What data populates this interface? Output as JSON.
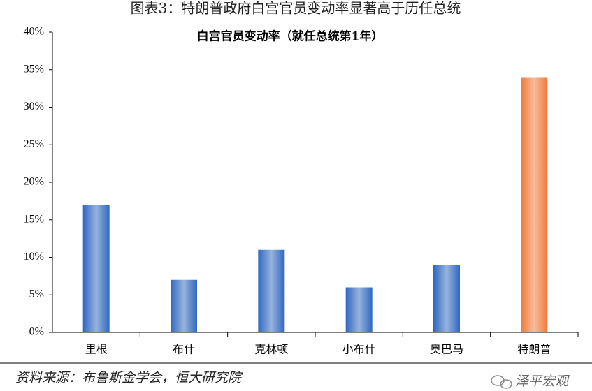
{
  "title": "图表3：特朗普政府白宫官员变动率显著高于历任总统",
  "source": "资料来源：布鲁斯金学会，恒大研究院",
  "watermark": "泽平宏观",
  "chart_data": {
    "type": "bar",
    "title": "白宫官员变动率（就任总统第1年）",
    "categories": [
      "里根",
      "布什",
      "克林顿",
      "小布什",
      "奥巴马",
      "特朗普"
    ],
    "values": [
      17,
      7,
      11,
      6,
      9,
      34
    ],
    "colors": [
      "#2f67bf",
      "#2f67bf",
      "#2f67bf",
      "#2f67bf",
      "#2f67bf",
      "#f07a3a"
    ],
    "ylim": [
      0,
      40
    ],
    "yticks": [
      {
        "value": 0,
        "label": "0%"
      },
      {
        "value": 5,
        "label": "5%"
      },
      {
        "value": 10,
        "label": "10%"
      },
      {
        "value": 15,
        "label": "15%"
      },
      {
        "value": 20,
        "label": "20%"
      },
      {
        "value": 25,
        "label": "25%"
      },
      {
        "value": 30,
        "label": "30%"
      },
      {
        "value": 35,
        "label": "35%"
      },
      {
        "value": 40,
        "label": "40%"
      }
    ],
    "grid": false
  }
}
